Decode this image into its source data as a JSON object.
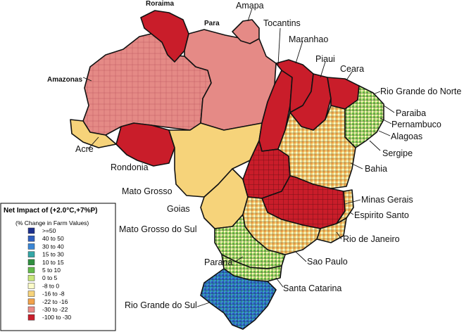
{
  "labels": {
    "roraima": "Roraima",
    "para": "Para",
    "amapa": "Amapa",
    "tocantins": "Tocantins",
    "maranhao": "Maranhao",
    "piaui": "Piaui",
    "ceara": "Ceara",
    "rio_grande_do_norte": "Rio Grande do Norte",
    "paraiba": "Paraiba",
    "pernambuco": "Pernambuco",
    "alagoas": "Alagoas",
    "sergipe": "Sergipe",
    "bahia": "Bahia",
    "amazonas": "Amazonas",
    "acre": "Acre",
    "rondonia": "Rondonia",
    "mato_grosso": "Mato Grosso",
    "goias": "Goias",
    "mato_grosso_do_sul": "Mato Grosso do Sul",
    "minas_gerais": "Minas Gerais",
    "espirito_santo": "Espirito Santo",
    "rio_de_janeiro": "Rio de Janeiro",
    "parana": "Parana",
    "sao_paulo": "Sao Paulo",
    "santa_catarina": "Santa Catarina",
    "rio_grande_do_sul": "Rio Grande do Sul"
  },
  "legend": {
    "title": "Net Impact of (+2.0°C,+7%P)",
    "subtitle": "(% Change in Farm Values)",
    "items": [
      {
        "label": ">=50",
        "color": "#1c2f8c"
      },
      {
        "label": "40 to 50",
        "color": "#2f5fbf"
      },
      {
        "label": "30 to 40",
        "color": "#3a86d6"
      },
      {
        "label": "15 to 30",
        "color": "#33a6a6"
      },
      {
        "label": "10 to 15",
        "color": "#2f8f3f"
      },
      {
        "label": "5 to 10",
        "color": "#63bb4a"
      },
      {
        "label": "0 to 5",
        "color": "#c8e67a"
      },
      {
        "label": "-8 to 0",
        "color": "#fbfbc8"
      },
      {
        "label": "-16 to -8",
        "color": "#f6d37a"
      },
      {
        "label": "-22 to -16",
        "color": "#f2a24a"
      },
      {
        "label": "-30 to -22",
        "color": "#ea8a86"
      },
      {
        "label": "-100 to -30",
        "color": "#c91d2a"
      }
    ]
  }
}
